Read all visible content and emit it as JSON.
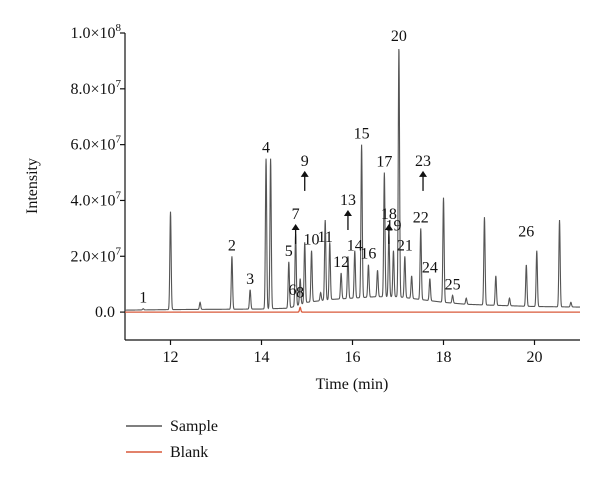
{
  "chart_data": {
    "type": "line",
    "title": "",
    "xlabel": "Time (min)",
    "ylabel": "Intensity",
    "xlim": [
      11,
      21
    ],
    "ylim": [
      -10000000.0,
      100000000.0
    ],
    "x_ticks": [
      12,
      14,
      16,
      18,
      20
    ],
    "y_ticks": [
      0,
      20000000,
      40000000,
      60000000,
      80000000,
      100000000
    ],
    "y_tick_labels": [
      {
        "mantissa": "0.0",
        "exp": ""
      },
      {
        "mantissa": "2.0×10",
        "exp": "7"
      },
      {
        "mantissa": "4.0×10",
        "exp": "7"
      },
      {
        "mantissa": "6.0×10",
        "exp": "7"
      },
      {
        "mantissa": "8.0×10",
        "exp": "7"
      },
      {
        "mantissa": "1.0×10",
        "exp": "8"
      }
    ],
    "legend_position": "bottom-left",
    "series": [
      {
        "name": "Sample",
        "color": "#555555",
        "baseline": [
          [
            11.0,
            700000
          ],
          [
            12.0,
            900000
          ],
          [
            13.0,
            1000000
          ],
          [
            14.0,
            1100000
          ],
          [
            14.6,
            1400000
          ],
          [
            15.0,
            3500000
          ],
          [
            15.5,
            4500000
          ],
          [
            16.0,
            5000000
          ],
          [
            16.5,
            5500000
          ],
          [
            17.0,
            5500000
          ],
          [
            17.5,
            4500000
          ],
          [
            18.0,
            3500000
          ],
          [
            18.5,
            2800000
          ],
          [
            19.0,
            2500000
          ],
          [
            20.0,
            2000000
          ],
          [
            21.0,
            1800000
          ]
        ],
        "peaks": [
          [
            11.4,
            1200000
          ],
          [
            12.0,
            36000000
          ],
          [
            12.65,
            3500000
          ],
          [
            13.35,
            20000000
          ],
          [
            13.75,
            8000000
          ],
          [
            14.1,
            55000000
          ],
          [
            14.2,
            55000000
          ],
          [
            14.6,
            18000000
          ],
          [
            14.75,
            28000000
          ],
          [
            14.85,
            12000000
          ],
          [
            14.95,
            25000000
          ],
          [
            15.1,
            22000000
          ],
          [
            15.3,
            7000000
          ],
          [
            15.4,
            33000000
          ],
          [
            15.5,
            25000000
          ],
          [
            15.75,
            14000000
          ],
          [
            15.9,
            20000000
          ],
          [
            16.05,
            22000000
          ],
          [
            16.2,
            60000000
          ],
          [
            16.35,
            17000000
          ],
          [
            16.55,
            15000000
          ],
          [
            16.7,
            50000000
          ],
          [
            16.8,
            28000000
          ],
          [
            16.9,
            22000000
          ],
          [
            17.02,
            95000000
          ],
          [
            17.15,
            20000000
          ],
          [
            17.3,
            13000000
          ],
          [
            17.5,
            30000000
          ],
          [
            17.7,
            12000000
          ],
          [
            18.0,
            41000000
          ],
          [
            18.2,
            6000000
          ],
          [
            18.5,
            5000000
          ],
          [
            18.9,
            34000000
          ],
          [
            19.15,
            13000000
          ],
          [
            19.45,
            5000000
          ],
          [
            19.82,
            17000000
          ],
          [
            20.05,
            22000000
          ],
          [
            20.55,
            33000000
          ],
          [
            20.8,
            3500000
          ]
        ]
      },
      {
        "name": "Blank",
        "color": "#d9593a",
        "baseline": [
          [
            11.0,
            0
          ],
          [
            21.0,
            0
          ]
        ],
        "peaks": [
          [
            14.85,
            1700000
          ]
        ]
      }
    ],
    "annotations": [
      {
        "text": "1",
        "x": 11.4,
        "y": 1200000,
        "arrow": false
      },
      {
        "text": "2",
        "x": 13.35,
        "y": 20000000,
        "arrow": false
      },
      {
        "text": "3",
        "x": 13.75,
        "y": 8000000,
        "arrow": false
      },
      {
        "text": "4",
        "x": 14.1,
        "y": 55000000,
        "arrow": false
      },
      {
        "text": "5",
        "x": 14.6,
        "y": 18000000,
        "arrow": false
      },
      {
        "text": "6",
        "x": 14.68,
        "y": 4000000,
        "arrow": false
      },
      {
        "text": "7",
        "x": 14.75,
        "y": 28000000,
        "arrow": true
      },
      {
        "text": "8",
        "x": 14.85,
        "y": 3000000,
        "arrow": false
      },
      {
        "text": "9",
        "x": 14.95,
        "y": 47000000,
        "arrow": true
      },
      {
        "text": "10",
        "x": 15.1,
        "y": 22000000,
        "arrow": false
      },
      {
        "text": "11",
        "x": 15.4,
        "y": 23000000,
        "arrow": false
      },
      {
        "text": "12",
        "x": 15.75,
        "y": 14000000,
        "arrow": false
      },
      {
        "text": "13",
        "x": 15.9,
        "y": 33000000,
        "arrow": true
      },
      {
        "text": "14",
        "x": 16.05,
        "y": 20000000,
        "arrow": false
      },
      {
        "text": "15",
        "x": 16.2,
        "y": 60000000,
        "arrow": false
      },
      {
        "text": "16",
        "x": 16.35,
        "y": 17000000,
        "arrow": false
      },
      {
        "text": "17",
        "x": 16.7,
        "y": 50000000,
        "arrow": false
      },
      {
        "text": "18",
        "x": 16.8,
        "y": 28000000,
        "arrow": true
      },
      {
        "text": "19",
        "x": 16.9,
        "y": 27000000,
        "arrow": false
      },
      {
        "text": "20",
        "x": 17.02,
        "y": 95000000,
        "arrow": false
      },
      {
        "text": "21",
        "x": 17.15,
        "y": 20000000,
        "arrow": false
      },
      {
        "text": "22",
        "x": 17.5,
        "y": 30000000,
        "arrow": false
      },
      {
        "text": "23",
        "x": 17.55,
        "y": 47000000,
        "arrow": true
      },
      {
        "text": "24",
        "x": 17.7,
        "y": 12000000,
        "arrow": false
      },
      {
        "text": "25",
        "x": 18.2,
        "y": 6000000,
        "arrow": false
      },
      {
        "text": "26",
        "x": 19.82,
        "y": 25000000,
        "arrow": false
      }
    ]
  }
}
